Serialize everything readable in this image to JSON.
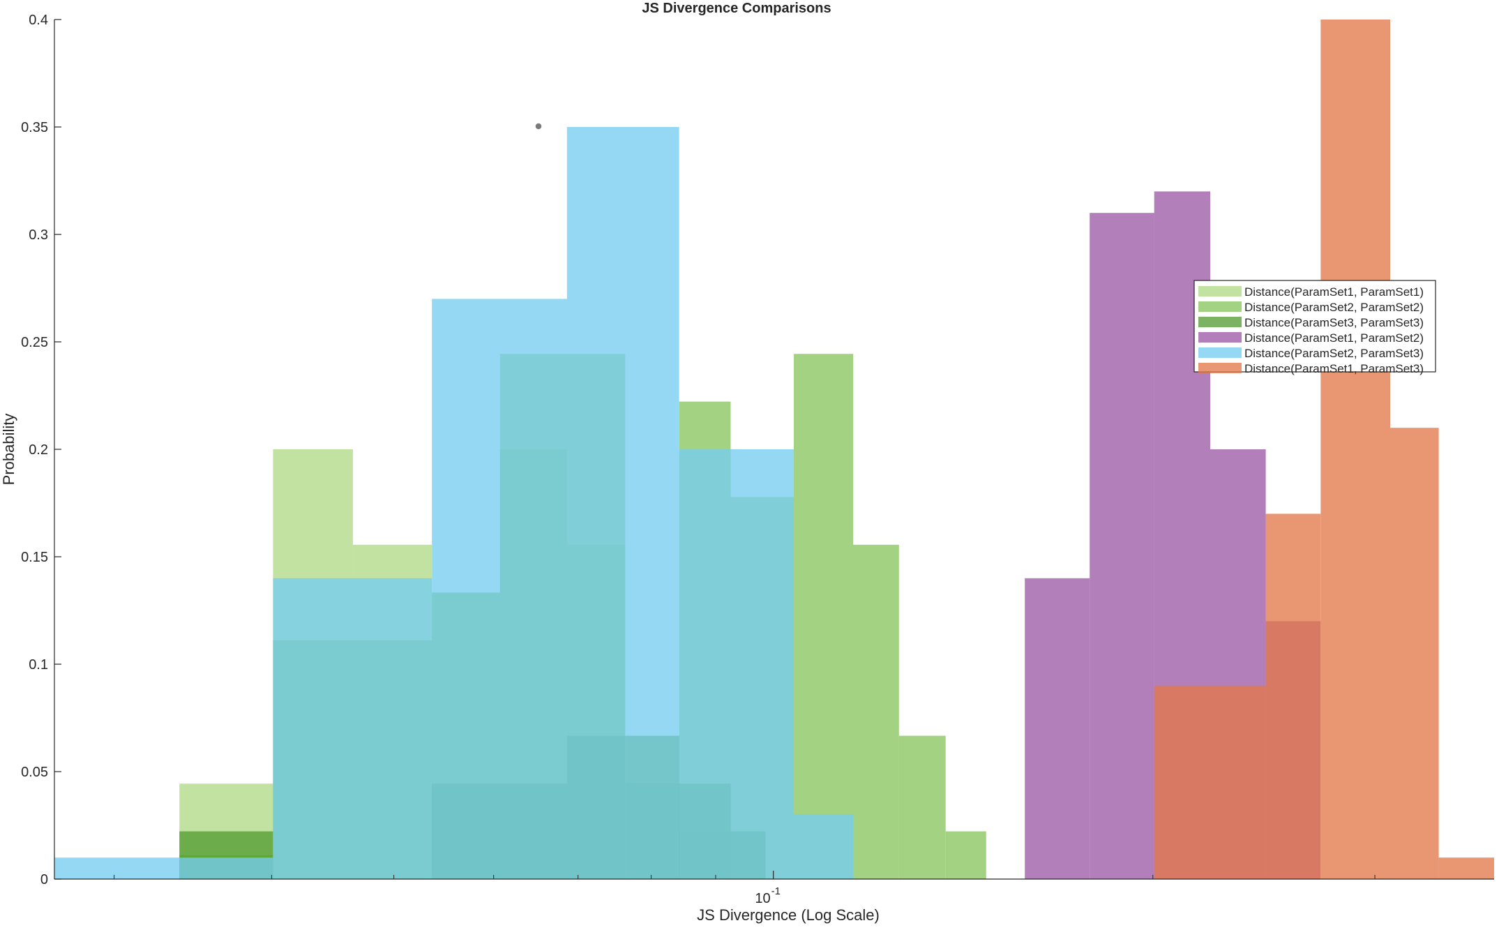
{
  "chart_data": {
    "type": "histogram",
    "title": "JS Divergence Comparisons",
    "xlabel": "JS Divergence (Log Scale)",
    "ylabel": "Probability",
    "x_scale": "log",
    "xlim": [
      0.0269,
      0.373
    ],
    "ylim": [
      0,
      0.4
    ],
    "yticks": [
      0,
      0.05,
      0.1,
      0.15,
      0.2,
      0.25,
      0.3,
      0.35,
      0.4
    ],
    "ytick_labels": [
      "0",
      "0.05",
      "0.1",
      "0.15",
      "0.2",
      "0.25",
      "0.3",
      "0.35",
      "0.4"
    ],
    "xticks": [
      0.1
    ],
    "xtick_base": "10",
    "xtick_exponent": "-1",
    "grid": false,
    "legend_location": "east",
    "series": [
      {
        "name": "Distance(ParamSet1, ParamSet1)",
        "color": "#a8d57a",
        "opacity": 0.7,
        "bins": [
          {
            "x0": 0.0338,
            "x1": 0.0401,
            "y": 0.0444
          },
          {
            "x0": 0.0401,
            "x1": 0.0464,
            "y": 0.2
          },
          {
            "x0": 0.0464,
            "x1": 0.0536,
            "y": 0.1556
          },
          {
            "x0": 0.0536,
            "x1": 0.0607,
            "y": 0.1333
          },
          {
            "x0": 0.0607,
            "x1": 0.0686,
            "y": 0.2
          },
          {
            "x0": 0.0686,
            "x1": 0.0763,
            "y": 0.1556
          },
          {
            "x0": 0.0763,
            "x1": 0.0842,
            "y": 0.0667
          },
          {
            "x0": 0.0842,
            "x1": 0.0925,
            "y": 0.0222
          }
        ]
      },
      {
        "name": "Distance(ParamSet2, ParamSet2)",
        "color": "#77bd48",
        "opacity": 0.68,
        "bins": [
          {
            "x0": 0.0338,
            "x1": 0.0401,
            "y": 0.0111
          },
          {
            "x0": 0.0401,
            "x1": 0.0536,
            "y": 0.1111
          },
          {
            "x0": 0.0536,
            "x1": 0.0607,
            "y": 0.1333
          },
          {
            "x0": 0.0607,
            "x1": 0.0686,
            "y": 0.2444
          },
          {
            "x0": 0.0686,
            "x1": 0.0763,
            "y": 0.2444
          },
          {
            "x0": 0.0763,
            "x1": 0.0842,
            "y": 0.0444
          },
          {
            "x0": 0.0842,
            "x1": 0.0925,
            "y": 0.2222
          },
          {
            "x0": 0.0925,
            "x1": 0.1038,
            "y": 0.1778
          },
          {
            "x0": 0.1038,
            "x1": 0.1157,
            "y": 0.2444
          },
          {
            "x0": 0.1157,
            "x1": 0.1258,
            "y": 0.1556
          },
          {
            "x0": 0.1258,
            "x1": 0.137,
            "y": 0.0667
          },
          {
            "x0": 0.137,
            "x1": 0.1475,
            "y": 0.0222
          }
        ]
      },
      {
        "name": "Distance(ParamSet3, ParamSet3)",
        "color": "#4f9a2e",
        "opacity": 0.75,
        "bins": [
          {
            "x0": 0.0338,
            "x1": 0.0401,
            "y": 0.0222
          },
          {
            "x0": 0.0536,
            "x1": 0.0686,
            "y": 0.0444
          },
          {
            "x0": 0.0686,
            "x1": 0.0763,
            "y": 0.0667
          },
          {
            "x0": 0.0763,
            "x1": 0.0842,
            "y": 0.0667
          },
          {
            "x0": 0.0842,
            "x1": 0.0925,
            "y": 0.0444
          },
          {
            "x0": 0.0925,
            "x1": 0.0986,
            "y": 0.0222
          }
        ]
      },
      {
        "name": "Distance(ParamSet1, ParamSet2)",
        "color": "#9e5ba8",
        "opacity": 0.78,
        "bins": [
          {
            "x0": 0.1583,
            "x1": 0.1782,
            "y": 0.14
          },
          {
            "x0": 0.1782,
            "x1": 0.2005,
            "y": 0.31
          },
          {
            "x0": 0.2005,
            "x1": 0.2221,
            "y": 0.32
          },
          {
            "x0": 0.2221,
            "x1": 0.2458,
            "y": 0.2
          },
          {
            "x0": 0.2458,
            "x1": 0.2717,
            "y": 0.12
          }
        ]
      },
      {
        "name": "Distance(ParamSet2, ParamSet3)",
        "color": "#76cdf0",
        "opacity": 0.78,
        "bins": [
          {
            "x0": 0.0269,
            "x1": 0.0338,
            "y": 0.01
          },
          {
            "x0": 0.0338,
            "x1": 0.0401,
            "y": 0.01
          },
          {
            "x0": 0.0401,
            "x1": 0.0536,
            "y": 0.14
          },
          {
            "x0": 0.0536,
            "x1": 0.0686,
            "y": 0.27
          },
          {
            "x0": 0.0686,
            "x1": 0.0842,
            "y": 0.35
          },
          {
            "x0": 0.0842,
            "x1": 0.1038,
            "y": 0.2
          },
          {
            "x0": 0.1038,
            "x1": 0.1157,
            "y": 0.03
          }
        ]
      },
      {
        "name": "Distance(ParamSet1, ParamSet3)",
        "color": "#e3784a",
        "opacity": 0.78,
        "bins": [
          {
            "x0": 0.2005,
            "x1": 0.2458,
            "y": 0.09
          },
          {
            "x0": 0.2458,
            "x1": 0.2717,
            "y": 0.17
          },
          {
            "x0": 0.2717,
            "x1": 0.3085,
            "y": 0.4
          },
          {
            "x0": 0.3085,
            "x1": 0.3371,
            "y": 0.21
          },
          {
            "x0": 0.3371,
            "x1": 0.373,
            "y": 0.01
          }
        ]
      }
    ]
  }
}
